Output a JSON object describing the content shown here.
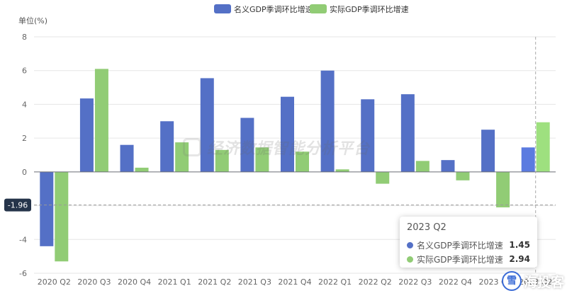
{
  "chart_data": {
    "type": "bar",
    "ylabel": "单位(%)",
    "ylim": [
      -6,
      8
    ],
    "yticks": [
      -6,
      -4,
      -2,
      0,
      2,
      4,
      6,
      8
    ],
    "categories": [
      "2020 Q2",
      "2020 Q3",
      "2020 Q4",
      "2021 Q1",
      "2021 Q2",
      "2021 Q3",
      "2021 Q4",
      "2022 Q1",
      "2022 Q2",
      "2022 Q3",
      "2022 Q4",
      "2023 Q1",
      "2023 Q2"
    ],
    "series": [
      {
        "name": "名义GDP季调环比增速",
        "color": "#5470c6",
        "values": [
          -4.4,
          4.35,
          1.6,
          3.0,
          5.55,
          3.2,
          4.45,
          6.0,
          4.3,
          4.6,
          0.7,
          2.5,
          1.45
        ]
      },
      {
        "name": "实际GDP季调环比增速",
        "color": "#91cc75",
        "values": [
          -5.3,
          6.1,
          0.25,
          1.75,
          1.3,
          1.45,
          1.2,
          0.15,
          -0.7,
          0.65,
          -0.5,
          -2.1,
          2.94
        ]
      }
    ],
    "legend_position": "top-center",
    "grid": true,
    "highlighted_category": "2023 Q2",
    "crosshair": {
      "y_value": -1.96,
      "y_label": "-1.96"
    }
  },
  "tooltip": {
    "title": "2023 Q2",
    "rows": [
      {
        "name": "名义GDP季调环比增速",
        "value": "1.45",
        "color": "#5470c6"
      },
      {
        "name": "实际GDP季调环比增速",
        "value": "2.94",
        "color": "#91cc75"
      }
    ]
  },
  "watermark": {
    "text": "经济数据智能分析平台"
  },
  "brand": {
    "text": "海投客"
  }
}
